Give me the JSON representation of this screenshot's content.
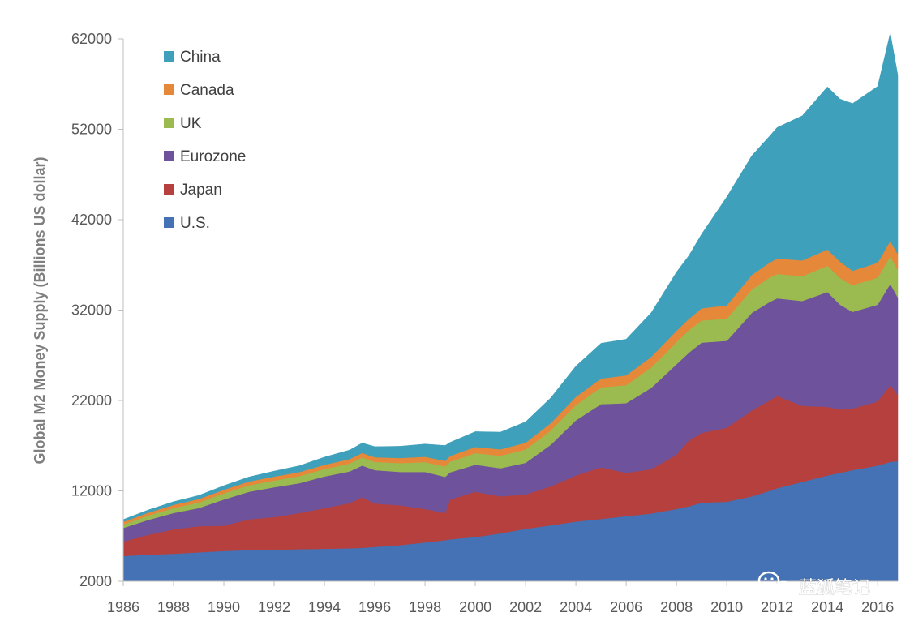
{
  "chart_data": {
    "type": "area",
    "stacked": true,
    "title": "",
    "xlabel": "",
    "ylabel": "Global M2 Money Supply (Billions US dollar)",
    "xlim": [
      1986,
      2016.8
    ],
    "ylim": [
      2000,
      62000
    ],
    "y_ticks": [
      "62000",
      "52000",
      "42000",
      "32000",
      "22000",
      "12000",
      "2000"
    ],
    "x_ticks": [
      "1986",
      "1988",
      "1990",
      "1992",
      "1994",
      "1996",
      "1998",
      "2000",
      "2002",
      "2004",
      "2006",
      "2008",
      "2010",
      "2012",
      "2014",
      "2016"
    ],
    "legend_position": "top-left",
    "grid": false,
    "x": [
      1986,
      1987,
      1988,
      1989,
      1990,
      1991,
      1992,
      1993,
      1994,
      1995,
      1995.5,
      1996,
      1997,
      1998,
      1998.8,
      1999,
      2000,
      2001,
      2002,
      2003,
      2004,
      2005,
      2006,
      2007,
      2008,
      2008.5,
      2009,
      2010,
      2011,
      2011.7,
      2012,
      2013,
      2014,
      2014.5,
      2015,
      2016,
      2016.5,
      2016.8
    ],
    "series": [
      {
        "name": "U.S.",
        "color": "#4472b4",
        "values": [
          2800,
          2950,
          3050,
          3200,
          3350,
          3450,
          3500,
          3550,
          3600,
          3650,
          3700,
          3800,
          4000,
          4300,
          4550,
          4650,
          4900,
          5300,
          5800,
          6200,
          6600,
          6900,
          7200,
          7500,
          8000,
          8300,
          8700,
          8800,
          9400,
          10000,
          10300,
          11000,
          11700,
          12000,
          12300,
          12800,
          13200,
          13300
        ]
      },
      {
        "name": "Japan",
        "color": "#b5403d",
        "values": [
          1600,
          2200,
          2700,
          2900,
          2800,
          3400,
          3600,
          4000,
          4500,
          5000,
          5600,
          4800,
          4400,
          3700,
          3000,
          4400,
          5000,
          4100,
          3800,
          4300,
          5100,
          5700,
          4800,
          4900,
          6000,
          7300,
          7700,
          8200,
          9500,
          10000,
          10200,
          8400,
          7600,
          7000,
          6800,
          7100,
          8500,
          7300
        ]
      },
      {
        "name": "Eurozone",
        "color": "#6e529b",
        "values": [
          1500,
          1650,
          1800,
          2000,
          2900,
          3050,
          3300,
          3300,
          3500,
          3500,
          3500,
          3700,
          3700,
          4100,
          4000,
          3000,
          3000,
          3100,
          3500,
          4600,
          6100,
          7000,
          7700,
          9000,
          10000,
          9700,
          10000,
          9600,
          10800,
          10900,
          10800,
          11600,
          12700,
          11600,
          10700,
          10700,
          11200,
          10800
        ]
      },
      {
        "name": "UK",
        "color": "#9bba4f",
        "values": [
          400,
          480,
          560,
          620,
          680,
          720,
          750,
          780,
          820,
          880,
          900,
          900,
          980,
          1080,
          1150,
          1180,
          1280,
          1380,
          1480,
          1580,
          1700,
          1850,
          2000,
          2250,
          2450,
          2500,
          2450,
          2450,
          2600,
          2700,
          2700,
          2750,
          2900,
          2950,
          2950,
          3000,
          3050,
          3050
        ]
      },
      {
        "name": "Canada",
        "color": "#e6883a",
        "values": [
          280,
          320,
          350,
          380,
          400,
          420,
          440,
          450,
          470,
          490,
          500,
          520,
          560,
          600,
          620,
          640,
          680,
          720,
          760,
          820,
          900,
          980,
          1080,
          1180,
          1250,
          1250,
          1350,
          1480,
          1600,
          1650,
          1700,
          1750,
          1800,
          1800,
          1600,
          1650,
          1700,
          1750
        ]
      },
      {
        "name": "China",
        "color": "#3ea0ba",
        "values": [
          250,
          300,
          350,
          400,
          450,
          500,
          600,
          700,
          850,
          1000,
          1100,
          1180,
          1300,
          1400,
          1700,
          1500,
          1700,
          1900,
          2300,
          2800,
          3400,
          3900,
          4000,
          4900,
          6500,
          7000,
          8200,
          12000,
          13200,
          14000,
          14500,
          16000,
          18000,
          18000,
          18500,
          19500,
          23000,
          19800
        ]
      }
    ]
  },
  "watermark": {
    "icon": "wechat-icon",
    "text": "蓝狐笔记"
  }
}
